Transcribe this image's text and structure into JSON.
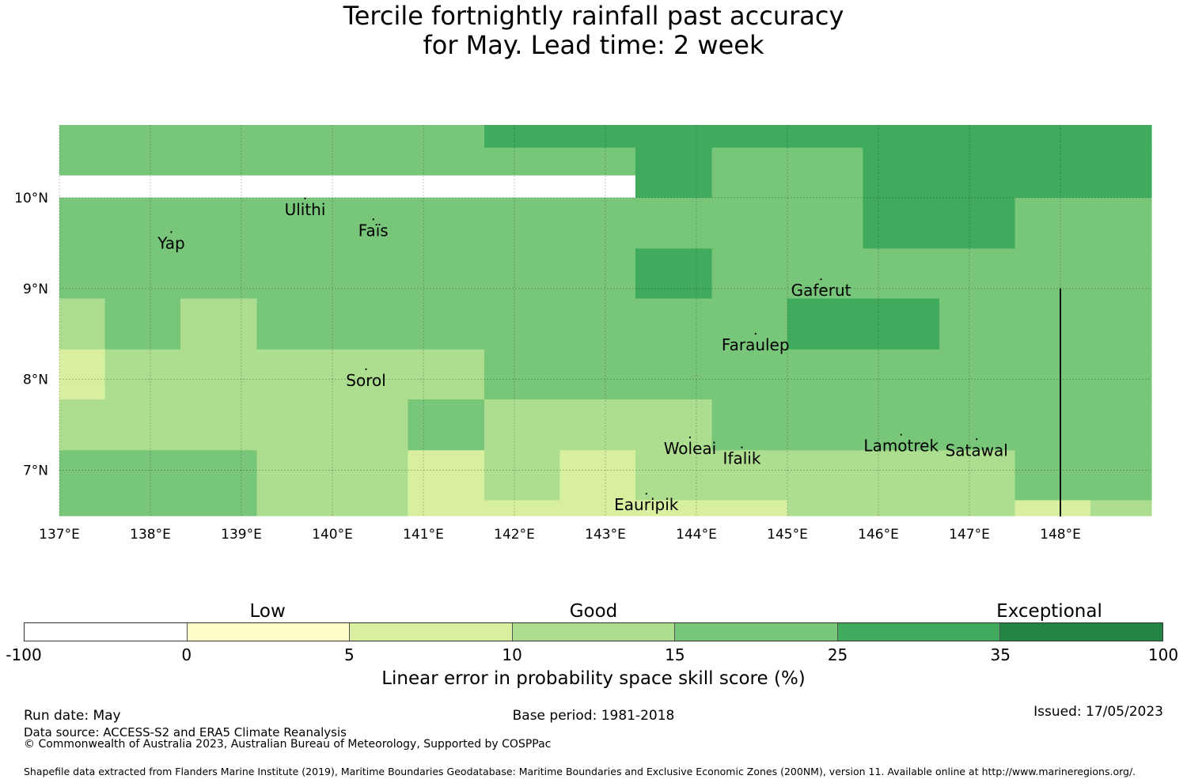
{
  "title": {
    "line1": "Tercile fortnightly rainfall past accuracy",
    "line2": "for May. Lead time: 2 week"
  },
  "map": {
    "lon_range": [
      137,
      149
    ],
    "lat_range": [
      6.5,
      10.8
    ],
    "lon_ticks": [
      {
        "value": 137,
        "label": "137°E"
      },
      {
        "value": 138,
        "label": "138°E"
      },
      {
        "value": 139,
        "label": "139°E"
      },
      {
        "value": 140,
        "label": "140°E"
      },
      {
        "value": 141,
        "label": "141°E"
      },
      {
        "value": 142,
        "label": "142°E"
      },
      {
        "value": 143,
        "label": "143°E"
      },
      {
        "value": 144,
        "label": "144°E"
      },
      {
        "value": 145,
        "label": "145°E"
      },
      {
        "value": 146,
        "label": "146°E"
      },
      {
        "value": 147,
        "label": "147°E"
      },
      {
        "value": 148,
        "label": "148°E"
      }
    ],
    "lat_ticks": [
      {
        "value": 10,
        "label": "10°N"
      },
      {
        "value": 9,
        "label": "9°N"
      },
      {
        "value": 8,
        "label": "8°N"
      },
      {
        "value": 7,
        "label": "7°N"
      }
    ],
    "grid": true,
    "class_colors": [
      "#ffffff",
      "#fffecb",
      "#d9efa0",
      "#addd8e",
      "#78c679",
      "#41ab5d",
      "#238443"
    ],
    "cells": [
      {
        "lon": [
          137.0,
          141.67
        ],
        "lat": [
          10.25,
          10.8
        ],
        "class": 4
      },
      {
        "lon": [
          141.67,
          149.0
        ],
        "lat": [
          10.55,
          10.8
        ],
        "class": 5
      },
      {
        "lon": [
          141.67,
          143.33
        ],
        "lat": [
          10.25,
          10.55
        ],
        "class": 4
      },
      {
        "lon": [
          143.33,
          144.17
        ],
        "lat": [
          10.0,
          10.55
        ],
        "class": 5
      },
      {
        "lon": [
          144.17,
          145.83
        ],
        "lat": [
          10.0,
          10.55
        ],
        "class": 4
      },
      {
        "lon": [
          145.83,
          149.0
        ],
        "lat": [
          10.0,
          10.55
        ],
        "class": 5
      },
      {
        "lon": [
          137.0,
          145.83
        ],
        "lat": [
          9.44,
          10.0
        ],
        "class": 4
      },
      {
        "lon": [
          145.83,
          147.5
        ],
        "lat": [
          9.44,
          10.0
        ],
        "class": 5
      },
      {
        "lon": [
          147.5,
          149.0
        ],
        "lat": [
          9.44,
          10.0
        ],
        "class": 4
      },
      {
        "lon": [
          137.0,
          143.33
        ],
        "lat": [
          8.89,
          9.44
        ],
        "class": 4
      },
      {
        "lon": [
          143.33,
          144.17
        ],
        "lat": [
          8.89,
          9.44
        ],
        "class": 5
      },
      {
        "lon": [
          144.17,
          149.0
        ],
        "lat": [
          8.89,
          9.44
        ],
        "class": 4
      },
      {
        "lon": [
          137.0,
          137.5
        ],
        "lat": [
          8.33,
          8.89
        ],
        "class": 3
      },
      {
        "lon": [
          137.5,
          138.33
        ],
        "lat": [
          8.33,
          8.89
        ],
        "class": 4
      },
      {
        "lon": [
          138.33,
          139.17
        ],
        "lat": [
          8.33,
          8.89
        ],
        "class": 3
      },
      {
        "lon": [
          139.17,
          145.0
        ],
        "lat": [
          8.33,
          8.89
        ],
        "class": 4
      },
      {
        "lon": [
          145.0,
          146.67
        ],
        "lat": [
          8.33,
          8.89
        ],
        "class": 5
      },
      {
        "lon": [
          146.67,
          149.0
        ],
        "lat": [
          8.33,
          8.89
        ],
        "class": 4
      },
      {
        "lon": [
          137.0,
          137.5
        ],
        "lat": [
          7.78,
          8.33
        ],
        "class": 2
      },
      {
        "lon": [
          137.5,
          141.67
        ],
        "lat": [
          7.78,
          8.33
        ],
        "class": 3
      },
      {
        "lon": [
          141.67,
          149.0
        ],
        "lat": [
          7.78,
          8.33
        ],
        "class": 4
      },
      {
        "lon": [
          137.0,
          140.83
        ],
        "lat": [
          7.22,
          7.78
        ],
        "class": 3
      },
      {
        "lon": [
          140.83,
          141.67
        ],
        "lat": [
          7.22,
          7.78
        ],
        "class": 4
      },
      {
        "lon": [
          141.67,
          144.17
        ],
        "lat": [
          7.22,
          7.78
        ],
        "class": 3
      },
      {
        "lon": [
          144.17,
          149.0
        ],
        "lat": [
          7.22,
          7.78
        ],
        "class": 4
      },
      {
        "lon": [
          137.0,
          139.17
        ],
        "lat": [
          6.5,
          7.22
        ],
        "class": 4
      },
      {
        "lon": [
          139.17,
          140.83
        ],
        "lat": [
          6.5,
          7.22
        ],
        "class": 3
      },
      {
        "lon": [
          140.83,
          141.67
        ],
        "lat": [
          6.5,
          7.22
        ],
        "class": 2
      },
      {
        "lon": [
          141.67,
          142.5
        ],
        "lat": [
          6.67,
          7.22
        ],
        "class": 3
      },
      {
        "lon": [
          141.67,
          142.5
        ],
        "lat": [
          6.5,
          6.67
        ],
        "class": 2
      },
      {
        "lon": [
          142.5,
          143.33
        ],
        "lat": [
          6.5,
          7.22
        ],
        "class": 2
      },
      {
        "lon": [
          143.33,
          147.5
        ],
        "lat": [
          6.67,
          7.22
        ],
        "class": 3
      },
      {
        "lon": [
          143.33,
          145.0
        ],
        "lat": [
          6.5,
          6.67
        ],
        "class": 2
      },
      {
        "lon": [
          145.0,
          147.5
        ],
        "lat": [
          6.5,
          6.67
        ],
        "class": 3
      },
      {
        "lon": [
          147.5,
          149.0
        ],
        "lat": [
          6.67,
          7.22
        ],
        "class": 4
      },
      {
        "lon": [
          147.5,
          148.33
        ],
        "lat": [
          6.5,
          6.67
        ],
        "class": 2
      },
      {
        "lon": [
          148.33,
          149.0
        ],
        "lat": [
          6.5,
          6.67
        ],
        "class": 3
      }
    ],
    "boundary_line": {
      "lon": 148.0,
      "lat": [
        6.5,
        9.0
      ]
    },
    "places": [
      {
        "name": "Ulithi",
        "lon": 139.7,
        "lat": 9.87
      },
      {
        "name": "Faïs",
        "lon": 140.45,
        "lat": 9.64
      },
      {
        "name": "Yap",
        "lon": 138.23,
        "lat": 9.5
      },
      {
        "name": "Gaferut",
        "lon": 145.37,
        "lat": 8.98
      },
      {
        "name": "Faraulep",
        "lon": 144.65,
        "lat": 8.38
      },
      {
        "name": "Sorol",
        "lon": 140.37,
        "lat": 7.99
      },
      {
        "name": "Woleai",
        "lon": 143.93,
        "lat": 7.24
      },
      {
        "name": "Ifalik",
        "lon": 144.5,
        "lat": 7.13
      },
      {
        "name": "Lamotrek",
        "lon": 146.25,
        "lat": 7.27
      },
      {
        "name": "Satawal",
        "lon": 147.08,
        "lat": 7.22
      },
      {
        "name": "Eauripik",
        "lon": 143.45,
        "lat": 6.62
      }
    ]
  },
  "colorbar": {
    "levels": [
      {
        "label": "Low",
        "at": 0.214
      },
      {
        "label": "Good",
        "at": 0.5
      },
      {
        "label": "Exceptional",
        "at": 0.9
      }
    ],
    "ticks": [
      "-100",
      "0",
      "5",
      "10",
      "15",
      "25",
      "35",
      "100"
    ],
    "label": "Linear error in probability space skill score (%)"
  },
  "footer": {
    "run_date": "Run date: May",
    "base_period": "Base period: 1981-2018",
    "issued": "Issued: 17/05/2023",
    "data_source": "Data source: ACCESS-S2 and ERA5 Climate Reanalysis",
    "copyright": "© Commonwealth of Australia 2023, Australian Bureau of Meteorology, Supported by COSPPac",
    "shapefile": "Shapefile data extracted from Flanders Marine Institute (2019), Maritime Boundaries Geodatabase: Maritime Boundaries and Exclusive Economic Zones (200NM), version 11. Available online at http://www.marineregions.org/."
  }
}
